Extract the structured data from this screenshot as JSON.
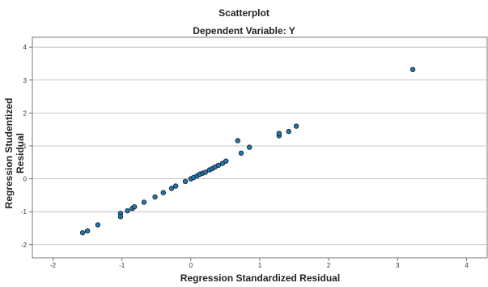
{
  "chart_data": {
    "type": "scatter",
    "title": "Scatterplot",
    "subtitle": "Dependent Variable: Y",
    "xlabel": "Regression Standardized Residual",
    "ylabel": "Regression Studentized Residual",
    "xlim": [
      -2.3,
      4.3
    ],
    "ylim": [
      -2.4,
      4.3
    ],
    "xticks": [
      -2,
      -1,
      0,
      1,
      2,
      3,
      4
    ],
    "yticks": [
      -2,
      -1,
      0,
      1,
      2,
      3,
      4
    ],
    "grid": "horizontal",
    "marker_color": "#1f77b4",
    "marker_edge": "#1a1a1a",
    "points": [
      {
        "x": -1.57,
        "y": -1.64
      },
      {
        "x": -1.5,
        "y": -1.58
      },
      {
        "x": -1.35,
        "y": -1.4
      },
      {
        "x": -1.02,
        "y": -1.05
      },
      {
        "x": -1.02,
        "y": -1.15
      },
      {
        "x": -0.92,
        "y": -0.97
      },
      {
        "x": -0.85,
        "y": -0.9
      },
      {
        "x": -0.82,
        "y": -0.85
      },
      {
        "x": -0.68,
        "y": -0.71
      },
      {
        "x": -0.52,
        "y": -0.55
      },
      {
        "x": -0.4,
        "y": -0.42
      },
      {
        "x": -0.28,
        "y": -0.29
      },
      {
        "x": -0.22,
        "y": -0.22
      },
      {
        "x": -0.08,
        "y": -0.08
      },
      {
        "x": 0.0,
        "y": 0.0
      },
      {
        "x": 0.04,
        "y": 0.04
      },
      {
        "x": 0.09,
        "y": 0.09
      },
      {
        "x": 0.13,
        "y": 0.14
      },
      {
        "x": 0.17,
        "y": 0.17
      },
      {
        "x": 0.21,
        "y": 0.2
      },
      {
        "x": 0.27,
        "y": 0.27
      },
      {
        "x": 0.31,
        "y": 0.31
      },
      {
        "x": 0.35,
        "y": 0.36
      },
      {
        "x": 0.4,
        "y": 0.41
      },
      {
        "x": 0.46,
        "y": 0.47
      },
      {
        "x": 0.51,
        "y": 0.54
      },
      {
        "x": 0.68,
        "y": 1.16
      },
      {
        "x": 0.73,
        "y": 0.78
      },
      {
        "x": 0.85,
        "y": 0.96
      },
      {
        "x": 1.28,
        "y": 1.31
      },
      {
        "x": 1.28,
        "y": 1.38
      },
      {
        "x": 1.42,
        "y": 1.44
      },
      {
        "x": 1.53,
        "y": 1.6
      },
      {
        "x": 3.22,
        "y": 3.32
      }
    ]
  }
}
